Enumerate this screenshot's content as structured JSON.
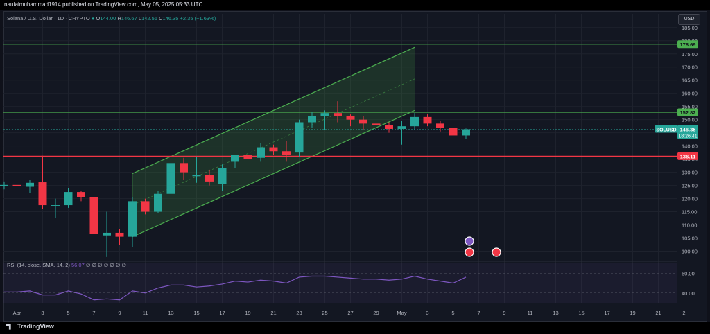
{
  "header": {
    "publish_line": "naufalmuhammad1914 published on TradingView.com, May 05, 2025 05:33 UTC"
  },
  "legend": {
    "symbol": "Solana / U.S. Dollar · 1D · CRYPTO",
    "o_label": "O",
    "o": "144.00",
    "h_label": "H",
    "h": "146.67",
    "l_label": "L",
    "l": "142.56",
    "c_label": "C",
    "c": "146.35",
    "change": "+2.35 (+1.63%)"
  },
  "rsi_legend": {
    "label": "RSI (14, close, SMA, 14, 2)",
    "value": "56.07",
    "dots": "∅ ∅ ∅ ∅ ∅ ∅ ∅"
  },
  "currency_button": "USD",
  "footer": {
    "logo_text": "TradingView"
  },
  "colors": {
    "up": "#26a69a",
    "down": "#f23645",
    "channel": "#4caf50",
    "support": "#f23645",
    "rsi": "#7e57c2"
  },
  "chart_data": {
    "type": "candlestick",
    "price_axis": {
      "ticks": [
        "100.00",
        "105.00",
        "110.00",
        "115.00",
        "120.00",
        "125.00",
        "130.00",
        "135.00",
        "140.00",
        "145.00",
        "150.00",
        "155.00",
        "160.00",
        "165.00",
        "170.00",
        "175.00",
        "180.00",
        "185.00"
      ],
      "range": [
        97.5,
        186
      ]
    },
    "time_axis": {
      "labels": [
        {
          "idx": 1,
          "t": "Apr"
        },
        {
          "idx": 3,
          "t": "3"
        },
        {
          "idx": 5,
          "t": "5"
        },
        {
          "idx": 7,
          "t": "7"
        },
        {
          "idx": 9,
          "t": "9"
        },
        {
          "idx": 11,
          "t": "11"
        },
        {
          "idx": 13,
          "t": "13"
        },
        {
          "idx": 15,
          "t": "15"
        },
        {
          "idx": 17,
          "t": "17"
        },
        {
          "idx": 19,
          "t": "19"
        },
        {
          "idx": 21,
          "t": "21"
        },
        {
          "idx": 23,
          "t": "23"
        },
        {
          "idx": 25,
          "t": "25"
        },
        {
          "idx": 27,
          "t": "27"
        },
        {
          "idx": 29,
          "t": "29"
        },
        {
          "idx": 31,
          "t": "May"
        },
        {
          "idx": 33,
          "t": "3"
        },
        {
          "idx": 35,
          "t": "5"
        },
        {
          "idx": 37,
          "t": "7"
        },
        {
          "idx": 39,
          "t": "9"
        },
        {
          "idx": 41,
          "t": "11"
        },
        {
          "idx": 43,
          "t": "13"
        },
        {
          "idx": 45,
          "t": "15"
        },
        {
          "idx": 47,
          "t": "17"
        },
        {
          "idx": 49,
          "t": "19"
        },
        {
          "idx": 51,
          "t": "21"
        },
        {
          "idx": 53,
          "t": "2"
        }
      ]
    },
    "candles": [
      {
        "o": 125.0,
        "h": 126.5,
        "l": 123.5,
        "c": 125.2
      },
      {
        "o": 125.2,
        "h": 128.5,
        "l": 122.5,
        "c": 124.8
      },
      {
        "o": 124.5,
        "h": 127.0,
        "l": 122.0,
        "c": 126.0
      },
      {
        "o": 126.2,
        "h": 136.3,
        "l": 116.0,
        "c": 117.5
      },
      {
        "o": 117.5,
        "h": 120.0,
        "l": 112.5,
        "c": 117.5
      },
      {
        "o": 117.5,
        "h": 124.0,
        "l": 116.5,
        "c": 122.5
      },
      {
        "o": 122.5,
        "h": 123.0,
        "l": 119.0,
        "c": 120.5
      },
      {
        "o": 120.5,
        "h": 121.0,
        "l": 104.5,
        "c": 106.5
      },
      {
        "o": 106.0,
        "h": 115.0,
        "l": 97.8,
        "c": 107.0
      },
      {
        "o": 107.0,
        "h": 108.5,
        "l": 102.5,
        "c": 105.5
      },
      {
        "o": 105.5,
        "h": 120.5,
        "l": 101.5,
        "c": 119.0
      },
      {
        "o": 119.0,
        "h": 120.0,
        "l": 114.0,
        "c": 115.0
      },
      {
        "o": 115.0,
        "h": 123.0,
        "l": 114.5,
        "c": 121.8
      },
      {
        "o": 121.8,
        "h": 134.5,
        "l": 121.0,
        "c": 133.5
      },
      {
        "o": 133.5,
        "h": 135.5,
        "l": 127.0,
        "c": 130.0
      },
      {
        "o": 128.5,
        "h": 136.0,
        "l": 126.0,
        "c": 129.0
      },
      {
        "o": 129.0,
        "h": 131.0,
        "l": 125.0,
        "c": 126.5
      },
      {
        "o": 125.5,
        "h": 133.0,
        "l": 123.0,
        "c": 131.5
      },
      {
        "o": 134.0,
        "h": 136.0,
        "l": 131.5,
        "c": 136.5
      },
      {
        "o": 136.5,
        "h": 138.5,
        "l": 134.0,
        "c": 135.0
      },
      {
        "o": 135.5,
        "h": 141.0,
        "l": 134.0,
        "c": 139.5
      },
      {
        "o": 139.5,
        "h": 140.5,
        "l": 136.5,
        "c": 138.0
      },
      {
        "o": 138.0,
        "h": 142.0,
        "l": 134.0,
        "c": 136.5
      },
      {
        "o": 137.5,
        "h": 150.0,
        "l": 136.0,
        "c": 149.0
      },
      {
        "o": 149.0,
        "h": 153.0,
        "l": 147.0,
        "c": 151.5
      },
      {
        "o": 151.5,
        "h": 153.5,
        "l": 146.0,
        "c": 152.5
      },
      {
        "o": 152.5,
        "h": 157.0,
        "l": 149.0,
        "c": 151.5
      },
      {
        "o": 151.5,
        "h": 152.0,
        "l": 147.5,
        "c": 150.0
      },
      {
        "o": 150.0,
        "h": 151.5,
        "l": 146.0,
        "c": 148.5
      },
      {
        "o": 148.5,
        "h": 153.0,
        "l": 147.5,
        "c": 148.0
      },
      {
        "o": 148.0,
        "h": 149.0,
        "l": 145.0,
        "c": 146.5
      },
      {
        "o": 146.5,
        "h": 149.5,
        "l": 140.5,
        "c": 147.5
      },
      {
        "o": 147.5,
        "h": 152.5,
        "l": 146.0,
        "c": 151.0
      },
      {
        "o": 151.0,
        "h": 152.0,
        "l": 147.5,
        "c": 148.5
      },
      {
        "o": 148.5,
        "h": 149.5,
        "l": 145.5,
        "c": 147.0
      },
      {
        "o": 147.0,
        "h": 148.5,
        "l": 143.0,
        "c": 144.0
      },
      {
        "o": 144.0,
        "h": 146.67,
        "l": 142.56,
        "c": 146.35
      }
    ],
    "levels": [
      {
        "value": 178.69,
        "label": "178.69",
        "color": "#4caf50"
      },
      {
        "value": 152.82,
        "label": "152.82",
        "color": "#4caf50"
      },
      {
        "value": 136.11,
        "label": "136.11",
        "color": "#f23645"
      }
    ],
    "channel": {
      "upper_start": {
        "idx": 10,
        "price": 129.5
      },
      "upper_end": {
        "idx": 32,
        "price": 177.5
      },
      "lower_start": {
        "idx": 10,
        "price": 105.5
      },
      "lower_end": {
        "idx": 32,
        "price": 153.5
      }
    },
    "current_price": {
      "symbol": "SOLUSD",
      "price": "146.35",
      "countdown": "18:26:41",
      "value": 146.35
    },
    "rsi": {
      "ticks": [
        "40.00",
        "60.00"
      ],
      "range": [
        30,
        70
      ],
      "values": [
        41,
        41,
        42,
        38,
        38,
        42,
        39,
        33,
        34,
        33,
        42,
        40,
        45,
        48,
        48,
        46,
        47,
        49,
        52,
        51,
        53,
        52,
        50,
        56,
        57,
        57,
        56,
        55,
        54,
        54,
        53,
        54,
        57,
        54,
        52,
        50,
        56
      ]
    }
  }
}
